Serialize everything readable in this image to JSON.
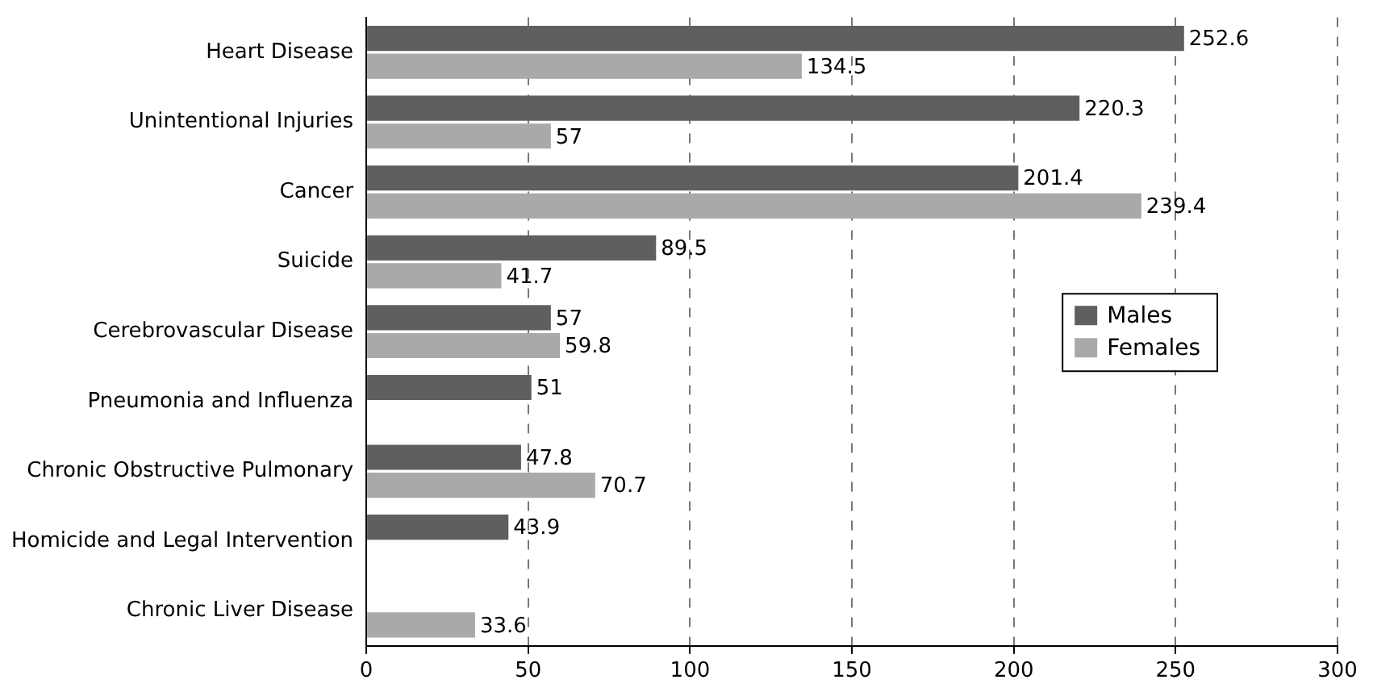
{
  "chart_data": {
    "type": "bar",
    "orientation": "horizontal",
    "categories": [
      "Heart Disease",
      "Unintentional Injuries",
      "Cancer",
      "Suicide",
      "Cerebrovascular Disease",
      "Pneumonia and Influenza",
      "Chronic Obstructive Pulmonary",
      "Homicide and Legal Intervention",
      "Chronic Liver Disease"
    ],
    "series": [
      {
        "name": "Males",
        "color": "#5f5f5f",
        "values": [
          252.6,
          220.3,
          201.4,
          89.5,
          57,
          51,
          47.8,
          43.9,
          null
        ]
      },
      {
        "name": "Females",
        "color": "#a9a9a9",
        "values": [
          134.5,
          57,
          239.4,
          41.7,
          59.8,
          null,
          70.7,
          null,
          33.6
        ]
      }
    ],
    "xlim": [
      0,
      300
    ],
    "xticks": [
      0,
      50,
      100,
      150,
      200,
      250,
      300
    ],
    "grid": "x",
    "legend": "right",
    "data_labels": true
  }
}
